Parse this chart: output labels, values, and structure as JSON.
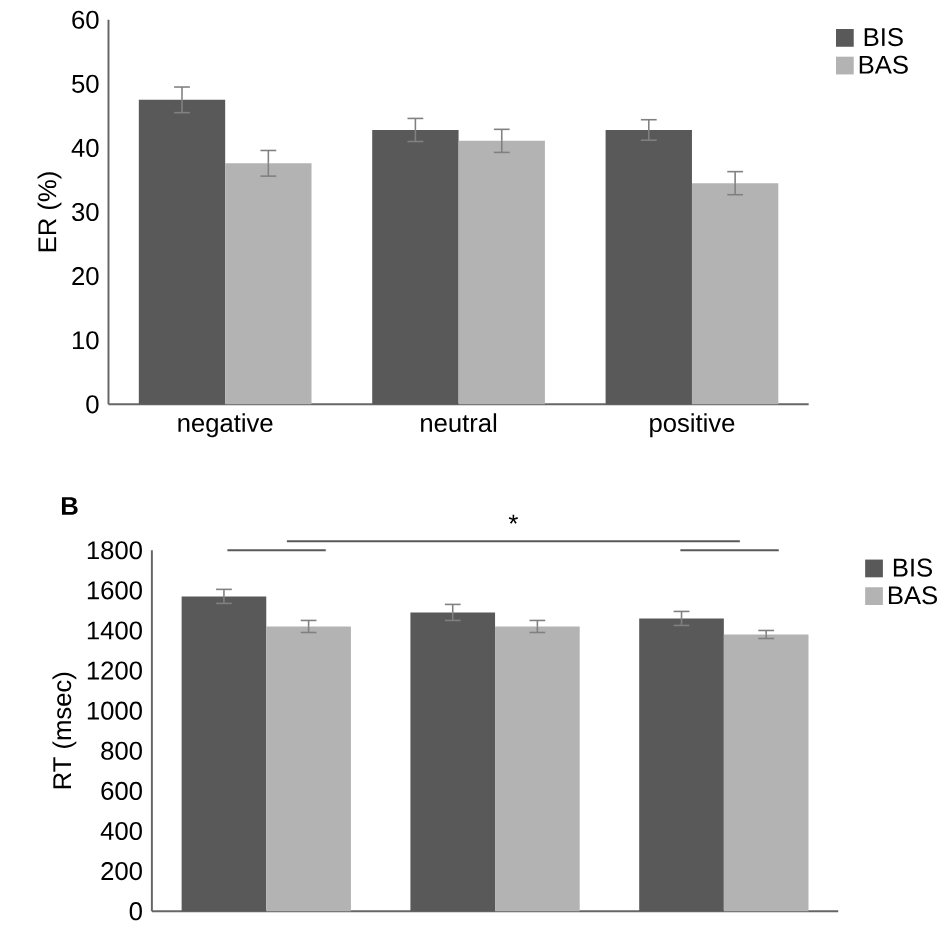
{
  "chart_data": [
    {
      "type": "bar",
      "ylabel": "ER (%)",
      "categories": [
        "negative",
        "neutral",
        "positive"
      ],
      "series": [
        {
          "name": "BIS",
          "color": "#595959",
          "values": [
            47.5,
            42.8,
            42.8
          ],
          "errors": [
            2,
            1.8,
            1.6
          ]
        },
        {
          "name": "BAS",
          "color": "#b3b3b3",
          "values": [
            37.6,
            41.1,
            34.5
          ],
          "errors": [
            2,
            1.8,
            1.8
          ]
        }
      ],
      "ylim": [
        0,
        60
      ],
      "yticks": [
        0,
        10,
        20,
        30,
        40,
        50,
        60
      ],
      "legend": "top right",
      "grid": false
    },
    {
      "type": "bar",
      "title": "B",
      "ylabel": "RT (msec)",
      "categories": [
        null,
        null,
        null
      ],
      "series": [
        {
          "name": "BIS",
          "color": "#595959",
          "values": [
            1570,
            1490,
            1460
          ],
          "errors": [
            35,
            40,
            35
          ]
        },
        {
          "name": "BAS",
          "color": "#b3b3b3",
          "values": [
            1420,
            1420,
            1380
          ],
          "errors": [
            30,
            30,
            20
          ]
        }
      ],
      "ylim": [
        0,
        1800
      ],
      "yticks": [
        0,
        200,
        400,
        600,
        800,
        1000,
        1200,
        1400,
        1600,
        1800
      ],
      "legend": "top right",
      "grid": false,
      "tick_labels": "y",
      "annotations": [
        "*"
      ]
    }
  ]
}
